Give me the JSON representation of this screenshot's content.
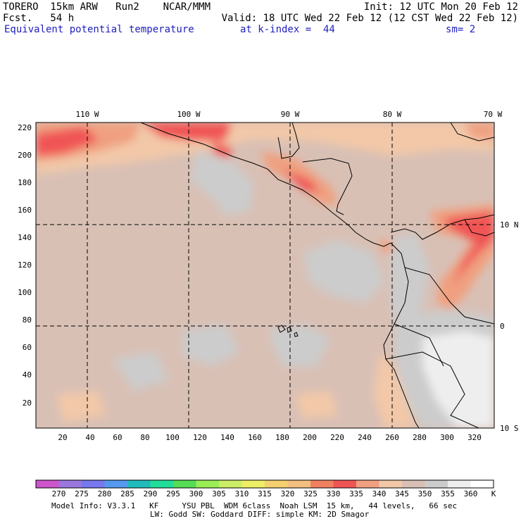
{
  "header": {
    "model": "TORERO  15km ARW   Run2    NCAR/MMM",
    "init": "Init: 12 UTC Mon 20 Feb 12",
    "fcst": "Fcst.   54 h",
    "valid": "Valid: 18 UTC Wed 22 Feb 12 (12 CST Wed 22 Feb 12)",
    "field": "Equivalent potential temperature",
    "level": "at k-index =  44",
    "smooth": "sm= 2"
  },
  "axes": {
    "lon_labels": [
      "110 W",
      "100 W",
      "90 W",
      "80 W",
      "70 W"
    ],
    "lat_labels": [
      "10 N",
      "0",
      "10 S"
    ],
    "y_ticks": [
      "220",
      "200",
      "180",
      "160",
      "140",
      "120",
      "100",
      "80",
      "60",
      "40",
      "20"
    ],
    "x_ticks": [
      "20",
      "40",
      "60",
      "80",
      "100",
      "120",
      "140",
      "160",
      "180",
      "200",
      "220",
      "240",
      "260",
      "280",
      "300",
      "320"
    ]
  },
  "colorbar": {
    "labels": [
      "270",
      "275",
      "280",
      "285",
      "290",
      "295",
      "300",
      "305",
      "310",
      "315",
      "320",
      "325",
      "330",
      "335",
      "340",
      "345",
      "350",
      "355",
      "360"
    ],
    "unit": "K",
    "colors": [
      "#cc55cc",
      "#9977dd",
      "#7777ee",
      "#5599ee",
      "#22bbbb",
      "#22dd99",
      "#55dd55",
      "#99ee55",
      "#ccee66",
      "#eeee66",
      "#f5d070",
      "#f4c080",
      "#f08060",
      "#f05555",
      "#f0a080",
      "#f2c8a8",
      "#d9c0b5",
      "#cccccc",
      "#eeeeee",
      "#ffffff"
    ]
  },
  "footer": {
    "line1": "Model Info: V3.3.1   KF     YSU PBL  WDM 6class  Noah LSM  15 km,   44 levels,   66 sec",
    "line2": "LW: Godd SW: Goddard DIFF: simple KM: 2D Smagor"
  }
}
